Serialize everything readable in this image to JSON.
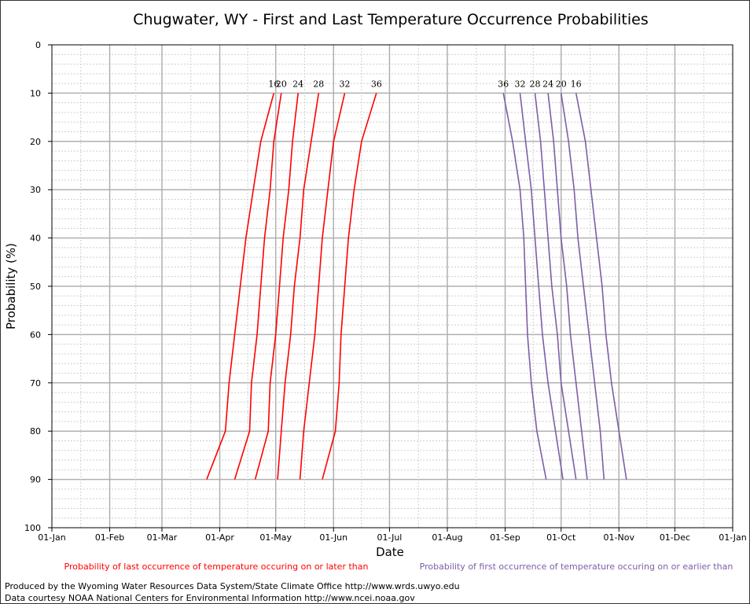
{
  "chart_data": {
    "type": "line",
    "title": "Chugwater, WY - First and Last Temperature Occurrence Probabilities",
    "xlabel": "Date",
    "ylabel": "Probability (%)",
    "x_ticks": [
      "01-Jan",
      "01-Feb",
      "01-Mar",
      "01-Apr",
      "01-May",
      "01-Jun",
      "01-Jul",
      "01-Aug",
      "01-Sep",
      "01-Oct",
      "01-Nov",
      "01-Dec",
      "01-Jan"
    ],
    "x_tick_days": [
      1,
      32,
      60,
      91,
      121,
      152,
      182,
      213,
      244,
      274,
      305,
      335,
      366
    ],
    "y_ticks": [
      0,
      10,
      20,
      30,
      40,
      50,
      60,
      70,
      80,
      90,
      100
    ],
    "ylim": [
      0,
      100
    ],
    "y_inverted": true,
    "grid": true,
    "probabilities": [
      10,
      20,
      30,
      40,
      50,
      60,
      70,
      80,
      90
    ],
    "series_last": [
      {
        "name": "16",
        "values": [
          120,
          113,
          109,
          105,
          102,
          99,
          96,
          94,
          84
        ]
      },
      {
        "name": "20",
        "values": [
          124,
          120,
          118,
          115,
          113,
          111,
          108,
          107,
          99
        ]
      },
      {
        "name": "24",
        "values": [
          133,
          130,
          128,
          125,
          123,
          121,
          118,
          117,
          110
        ]
      },
      {
        "name": "28",
        "values": [
          144,
          140,
          136,
          134,
          131,
          129,
          126,
          124,
          122
        ]
      },
      {
        "name": "32",
        "values": [
          158,
          152,
          149,
          146,
          144,
          142,
          139,
          136,
          134
        ]
      },
      {
        "name": "36",
        "values": [
          175,
          167,
          163,
          160,
          158,
          156,
          155,
          153,
          146
        ]
      }
    ],
    "series_first": [
      {
        "name": "36",
        "values": [
          243,
          248,
          252,
          254,
          255,
          256,
          258,
          261,
          266
        ]
      },
      {
        "name": "32",
        "values": [
          252,
          255,
          258,
          260,
          262,
          264,
          267,
          271,
          275
        ]
      },
      {
        "name": "28",
        "values": [
          260,
          263,
          265,
          267,
          269,
          272,
          274,
          278,
          282
        ]
      },
      {
        "name": "24",
        "values": [
          267,
          270,
          272,
          274,
          277,
          279,
          282,
          285,
          288
        ]
      },
      {
        "name": "20",
        "values": [
          274,
          278,
          281,
          283,
          286,
          289,
          292,
          295,
          297
        ]
      },
      {
        "name": "16",
        "values": [
          282,
          287,
          290,
          293,
          296,
          298,
          301,
          305,
          309
        ]
      }
    ],
    "legend_last": "Probability of last occurrence of temperature occuring on or later than",
    "legend_first": "Probability of first occurrence of temperature occuring on or earlier than",
    "colors": {
      "last": "#ff0000",
      "first": "#7b5fa6",
      "grid_major": "#b0b0b0",
      "grid_minor": "#cfcfcf"
    }
  },
  "credits": {
    "line1": "Produced by the Wyoming Water Resources Data System/State Climate Office http://www.wrds.uwyo.edu",
    "line2": "Data courtesy NOAA National Centers for Environmental Information http://www.ncei.noaa.gov"
  }
}
